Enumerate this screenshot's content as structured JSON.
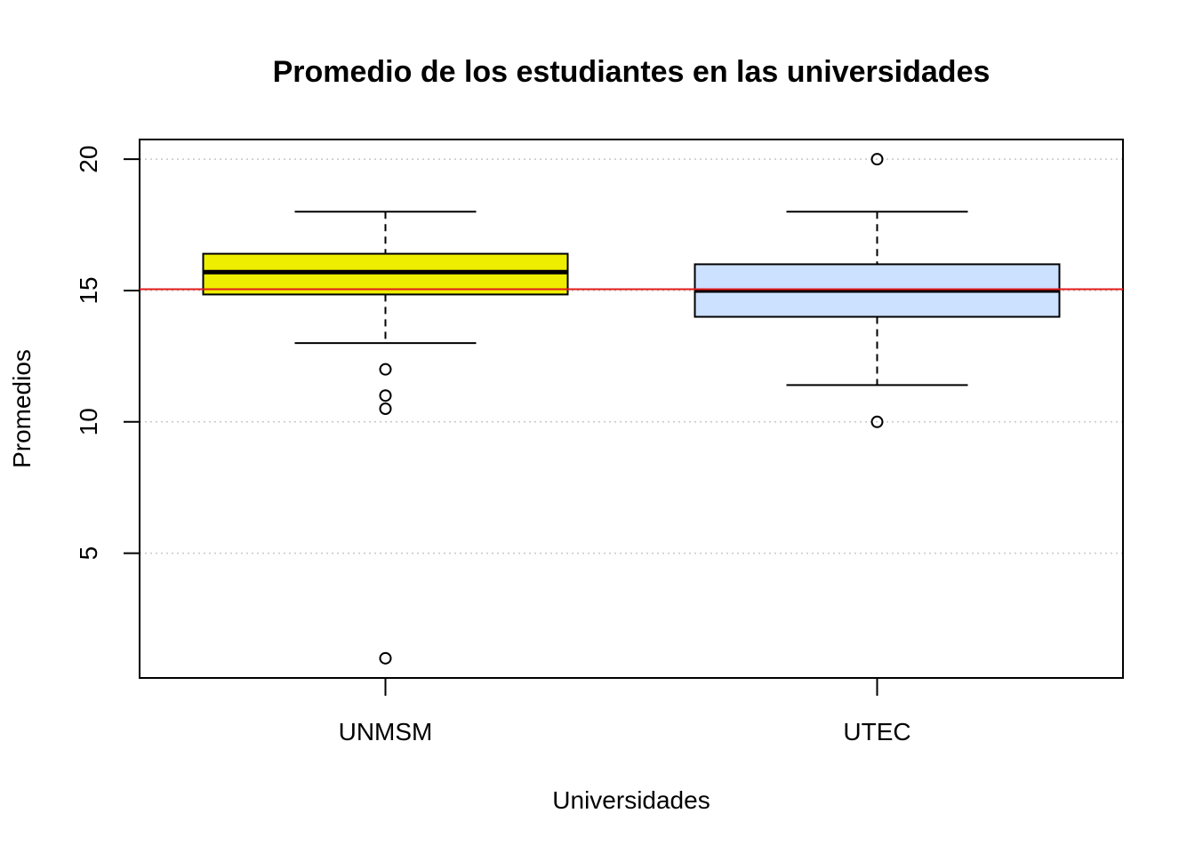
{
  "chart_data": {
    "type": "boxplot",
    "title": "Promedio de los estudiantes en las universidades",
    "xlabel": "Universidades",
    "ylabel": "Promedios",
    "ylim": [
      0.25,
      20.75
    ],
    "yticks": [
      5,
      10,
      15,
      20
    ],
    "ytick_labels": [
      "5",
      "10",
      "15",
      "20"
    ],
    "grid": "horizontal dotted at y ticks",
    "reference_line": {
      "y": 15.05,
      "color": "#e31a1c"
    },
    "categories": [
      "UNMSM",
      "UTEC"
    ],
    "boxes": [
      {
        "name": "UNMSM",
        "color": "#eeee00",
        "whisker_low": 13,
        "q1": 14.85,
        "median": 15.7,
        "q3": 16.4,
        "whisker_high": 18,
        "outliers": [
          12,
          11,
          10.5,
          1
        ]
      },
      {
        "name": "UTEC",
        "color": "#cce0ff",
        "whisker_low": 11.4,
        "q1": 14,
        "median": 15,
        "q3": 16,
        "whisker_high": 18,
        "outliers": [
          20,
          10
        ]
      }
    ]
  }
}
